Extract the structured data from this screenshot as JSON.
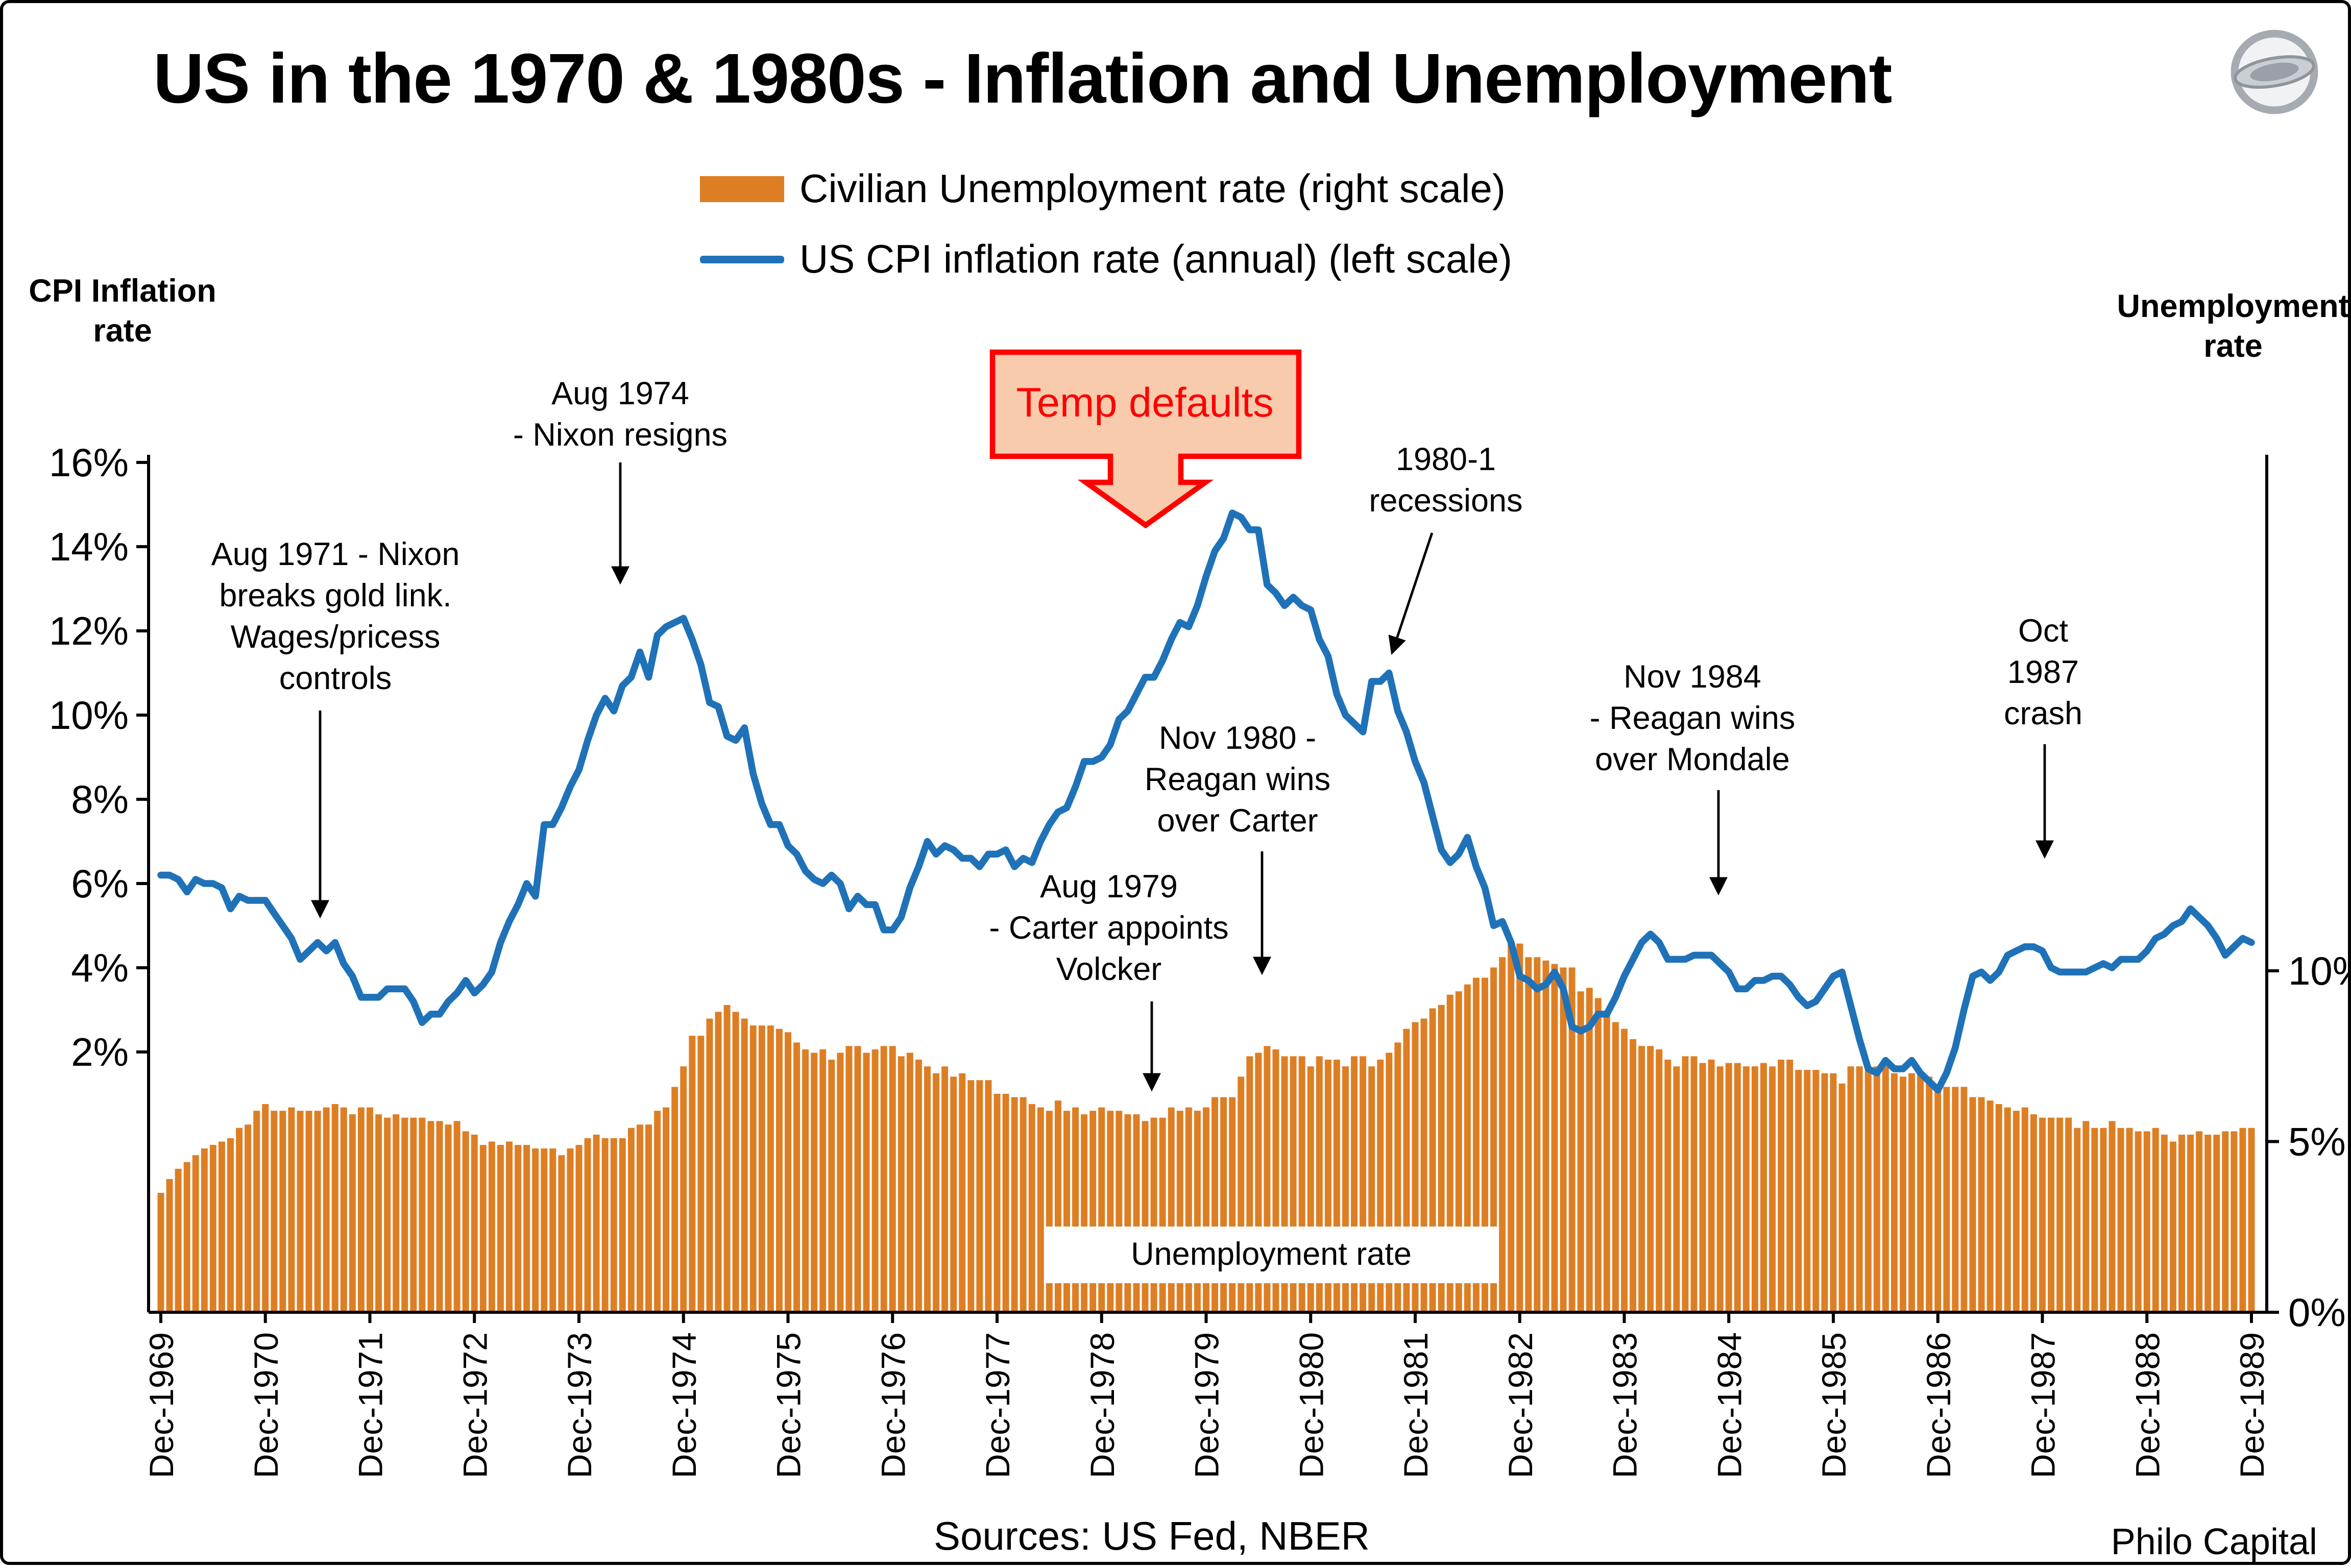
{
  "page": {
    "sources_note": "Sources: US Fed, NBER",
    "credit": "Philo Capital"
  },
  "axes": {
    "left_title": "CPI Inflation\nrate",
    "right_title": "Unemployment\nrate"
  },
  "colors": {
    "bar": "#DE7E23",
    "line": "#1F72B8",
    "axis": "#000000",
    "annotation_arrow": "#000000",
    "callout_fill": "#F8CBAD",
    "callout_stroke": "#FF0000"
  },
  "chart_data": {
    "type": "combo",
    "title": "US in the 1970 & 1980s - Inflation and Unemployment",
    "frequency": "monthly",
    "x_start": "Dec-1969",
    "x_end": "Dec-1989",
    "grid": false,
    "legend_position": "top-center",
    "x_tick_labels": [
      "Dec-1969",
      "Dec-1970",
      "Dec-1971",
      "Dec-1972",
      "Dec-1973",
      "Dec-1974",
      "Dec-1975",
      "Dec-1976",
      "Dec-1977",
      "Dec-1978",
      "Dec-1979",
      "Dec-1980",
      "Dec-1981",
      "Dec-1982",
      "Dec-1983",
      "Dec-1984",
      "Dec-1985",
      "Dec-1986",
      "Dec-1987",
      "Dec-1988",
      "Dec-1989"
    ],
    "left_axis": {
      "label": "CPI Inflation rate",
      "tick_values": [
        16,
        14,
        12,
        10,
        8,
        6,
        4,
        2
      ],
      "tick_labels": [
        "16%",
        "14%",
        "12%",
        "10%",
        "8%",
        "6%",
        "4%",
        "2%"
      ],
      "range": [
        -4.2,
        16
      ]
    },
    "right_axis": {
      "label": "Unemployment rate",
      "tick_values": [
        10,
        5,
        0
      ],
      "tick_labels": [
        "10%",
        "5%",
        "0%"
      ],
      "range": [
        0,
        25
      ]
    },
    "annotations": {
      "nixon_gold": "Aug 1971 - Nixon\nbreaks gold link.\nWages/pricess\ncontrols",
      "nixon_resigns": "Aug 1974\n- Nixon resigns",
      "temp_defaults": "Temp defaults",
      "recessions": "1980-1\nrecessions",
      "volcker": "Aug 1979\n- Carter appoints\nVolcker",
      "reagan_carter": "Nov 1980 -\nReagan wins\nover Carter",
      "reagan_mondale": "Nov 1984\n- Reagan wins\nover Mondale",
      "oct_1987": "Oct\n1987\ncrash",
      "unemployment_box": "Unemployment rate"
    },
    "series": [
      {
        "name": "Civilian Unemployment rate (right scale)",
        "chart_type": "bar",
        "axis": "right",
        "color": "#DE7E23",
        "values": [
          3.5,
          3.9,
          4.2,
          4.4,
          4.6,
          4.8,
          4.9,
          5.0,
          5.1,
          5.4,
          5.5,
          5.9,
          6.1,
          5.9,
          5.9,
          6.0,
          5.9,
          5.9,
          5.9,
          6.0,
          6.1,
          6.0,
          5.8,
          6.0,
          6.0,
          5.8,
          5.7,
          5.8,
          5.7,
          5.7,
          5.7,
          5.6,
          5.6,
          5.5,
          5.6,
          5.3,
          5.2,
          4.9,
          5.0,
          4.9,
          5.0,
          4.9,
          4.9,
          4.8,
          4.8,
          4.8,
          4.6,
          4.8,
          4.9,
          5.1,
          5.2,
          5.1,
          5.1,
          5.1,
          5.4,
          5.5,
          5.5,
          5.9,
          6.0,
          6.6,
          7.2,
          8.1,
          8.1,
          8.6,
          8.8,
          9.0,
          8.8,
          8.6,
          8.4,
          8.4,
          8.4,
          8.3,
          8.2,
          7.9,
          7.7,
          7.6,
          7.7,
          7.4,
          7.6,
          7.8,
          7.8,
          7.6,
          7.7,
          7.8,
          7.8,
          7.5,
          7.6,
          7.4,
          7.2,
          7.0,
          7.2,
          6.9,
          7.0,
          6.8,
          6.8,
          6.8,
          6.4,
          6.4,
          6.3,
          6.3,
          6.1,
          6.0,
          5.9,
          6.2,
          5.9,
          6.0,
          5.8,
          5.9,
          6.0,
          5.9,
          5.9,
          5.8,
          5.8,
          5.6,
          5.7,
          5.7,
          6.0,
          5.9,
          6.0,
          5.9,
          6.0,
          6.3,
          6.3,
          6.3,
          6.9,
          7.5,
          7.6,
          7.8,
          7.7,
          7.5,
          7.5,
          7.5,
          7.2,
          7.5,
          7.4,
          7.4,
          7.2,
          7.5,
          7.5,
          7.2,
          7.4,
          7.6,
          7.9,
          8.3,
          8.5,
          8.6,
          8.9,
          9.0,
          9.3,
          9.4,
          9.6,
          9.8,
          9.8,
          10.1,
          10.4,
          10.8,
          10.8,
          10.4,
          10.4,
          10.3,
          10.2,
          10.1,
          10.1,
          9.4,
          9.5,
          9.2,
          8.8,
          8.5,
          8.3,
          8.0,
          7.8,
          7.8,
          7.7,
          7.4,
          7.2,
          7.5,
          7.5,
          7.3,
          7.4,
          7.2,
          7.3,
          7.3,
          7.2,
          7.2,
          7.3,
          7.2,
          7.4,
          7.4,
          7.1,
          7.1,
          7.1,
          7.0,
          7.0,
          6.7,
          7.2,
          7.2,
          7.1,
          7.2,
          7.2,
          7.0,
          6.9,
          7.0,
          7.0,
          6.9,
          6.6,
          6.6,
          6.6,
          6.6,
          6.3,
          6.3,
          6.2,
          6.1,
          6.0,
          5.9,
          6.0,
          5.8,
          5.7,
          5.7,
          5.7,
          5.7,
          5.4,
          5.6,
          5.4,
          5.4,
          5.6,
          5.4,
          5.4,
          5.3,
          5.3,
          5.4,
          5.2,
          5.0,
          5.2,
          5.2,
          5.3,
          5.2,
          5.2,
          5.3,
          5.3,
          5.4,
          5.4
        ]
      },
      {
        "name": "US CPI inflation rate (annual) (left scale)",
        "chart_type": "line",
        "axis": "left",
        "color": "#1F72B8",
        "values": [
          6.2,
          6.2,
          6.1,
          5.8,
          6.1,
          6.0,
          6.0,
          5.9,
          5.4,
          5.7,
          5.6,
          5.6,
          5.6,
          5.3,
          5.0,
          4.7,
          4.2,
          4.4,
          4.6,
          4.4,
          4.6,
          4.1,
          3.8,
          3.3,
          3.3,
          3.3,
          3.5,
          3.5,
          3.5,
          3.2,
          2.7,
          2.9,
          2.9,
          3.2,
          3.4,
          3.7,
          3.4,
          3.6,
          3.9,
          4.6,
          5.1,
          5.5,
          6.0,
          5.7,
          7.4,
          7.4,
          7.8,
          8.3,
          8.7,
          9.4,
          10.0,
          10.4,
          10.1,
          10.7,
          10.9,
          11.5,
          10.9,
          11.9,
          12.1,
          12.2,
          12.3,
          11.8,
          11.2,
          10.3,
          10.2,
          9.5,
          9.4,
          9.7,
          8.6,
          7.9,
          7.4,
          7.4,
          6.9,
          6.7,
          6.3,
          6.1,
          6.0,
          6.2,
          6.0,
          5.4,
          5.7,
          5.5,
          5.5,
          4.9,
          4.9,
          5.2,
          5.9,
          6.4,
          7.0,
          6.7,
          6.9,
          6.8,
          6.6,
          6.6,
          6.4,
          6.7,
          6.7,
          6.8,
          6.4,
          6.6,
          6.5,
          7.0,
          7.4,
          7.7,
          7.8,
          8.3,
          8.9,
          8.9,
          9.0,
          9.3,
          9.9,
          10.1,
          10.5,
          10.9,
          10.9,
          11.3,
          11.8,
          12.2,
          12.1,
          12.6,
          13.3,
          13.9,
          14.2,
          14.8,
          14.7,
          14.4,
          14.4,
          13.1,
          12.9,
          12.6,
          12.8,
          12.6,
          12.5,
          11.8,
          11.4,
          10.5,
          10.0,
          9.8,
          9.6,
          10.8,
          10.8,
          11.0,
          10.1,
          9.6,
          8.9,
          8.4,
          7.6,
          6.8,
          6.5,
          6.7,
          7.1,
          6.4,
          5.9,
          5.0,
          5.1,
          4.6,
          3.8,
          3.7,
          3.5,
          3.6,
          3.9,
          3.5,
          2.6,
          2.5,
          2.6,
          2.9,
          2.9,
          3.3,
          3.8,
          4.2,
          4.6,
          4.8,
          4.6,
          4.2,
          4.2,
          4.2,
          4.3,
          4.3,
          4.3,
          4.1,
          3.9,
          3.5,
          3.5,
          3.7,
          3.7,
          3.8,
          3.8,
          3.6,
          3.3,
          3.1,
          3.2,
          3.5,
          3.8,
          3.9,
          3.1,
          2.3,
          1.6,
          1.5,
          1.8,
          1.6,
          1.6,
          1.8,
          1.5,
          1.3,
          1.1,
          1.5,
          2.1,
          3.0,
          3.8,
          3.9,
          3.7,
          3.9,
          4.3,
          4.4,
          4.5,
          4.5,
          4.4,
          4.0,
          3.9,
          3.9,
          3.9,
          3.9,
          4.0,
          4.1,
          4.0,
          4.2,
          4.2,
          4.2,
          4.4,
          4.7,
          4.8,
          5.0,
          5.1,
          5.4,
          5.2,
          5.0,
          4.7,
          4.3,
          4.5,
          4.7,
          4.6
        ]
      }
    ]
  }
}
